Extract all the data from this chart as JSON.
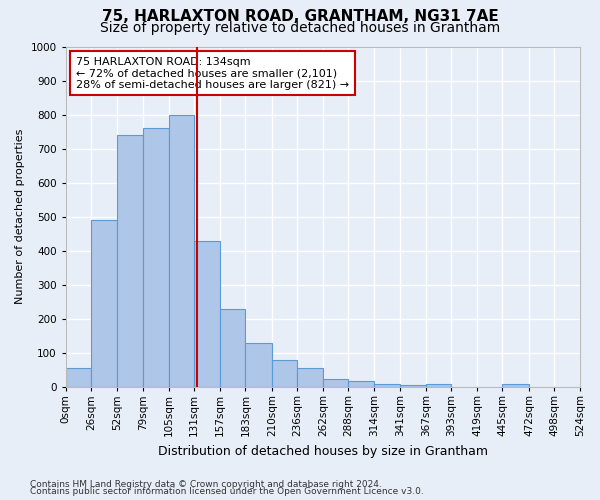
{
  "title": "75, HARLAXTON ROAD, GRANTHAM, NG31 7AE",
  "subtitle": "Size of property relative to detached houses in Grantham",
  "xlabel": "Distribution of detached houses by size in Grantham",
  "ylabel": "Number of detached properties",
  "footer_line1": "Contains HM Land Registry data © Crown copyright and database right 2024.",
  "footer_line2": "Contains public sector information licensed under the Open Government Licence v3.0.",
  "bar_edges": [
    0,
    26,
    52,
    79,
    105,
    131,
    157,
    183,
    210,
    236,
    262,
    288,
    314,
    341,
    367,
    393,
    419,
    445,
    472,
    498,
    524
  ],
  "bar_heights": [
    55,
    490,
    740,
    760,
    800,
    430,
    230,
    130,
    80,
    55,
    25,
    18,
    10,
    5,
    10,
    0,
    0,
    8,
    0,
    0
  ],
  "bar_color": "#aec6e8",
  "bar_edge_color": "#5b9bd5",
  "property_line_x": 134,
  "property_line_color": "#cc0000",
  "annotation_line1": "75 HARLAXTON ROAD: 134sqm",
  "annotation_line2": "← 72% of detached houses are smaller (2,101)",
  "annotation_line3": "28% of semi-detached houses are larger (821) →",
  "annotation_box_color": "#ffffff",
  "annotation_box_edge_color": "#cc0000",
  "ylim": [
    0,
    1000
  ],
  "yticks": [
    0,
    100,
    200,
    300,
    400,
    500,
    600,
    700,
    800,
    900,
    1000
  ],
  "bg_color": "#e8eef8",
  "plot_bg_color": "#e8eef8",
  "grid_color": "#ffffff",
  "title_fontsize": 11,
  "subtitle_fontsize": 10,
  "ylabel_fontsize": 8,
  "xlabel_fontsize": 9,
  "tick_label_fontsize": 7.5,
  "annotation_fontsize": 8
}
